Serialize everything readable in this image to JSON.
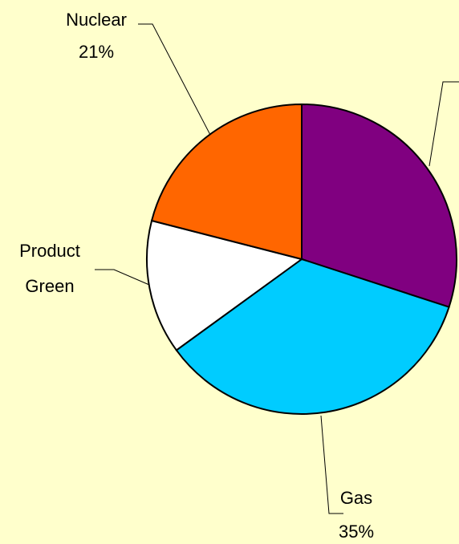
{
  "chart_data": {
    "type": "pie",
    "categories": [
      null,
      "Gas",
      "Product Green",
      "Nuclear"
    ],
    "values": [
      30,
      35,
      14,
      21
    ],
    "value_labels": [
      null,
      "35%",
      null,
      "21%"
    ],
    "colors": [
      "#800080",
      "#00ccff",
      "#ffffff",
      "#ff6600"
    ],
    "start_angle": 0,
    "direction": "clockwise"
  }
}
